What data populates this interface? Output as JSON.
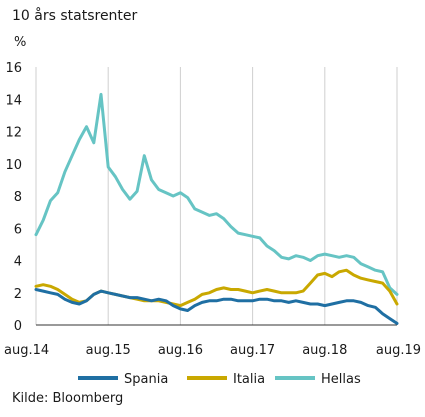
{
  "chart_data": {
    "type": "line",
    "title": "10 års statsrenter",
    "ylabel": "%",
    "xlabel": "",
    "source": "Kilde: Bloomberg",
    "ylim": [
      0,
      16
    ],
    "yticks": [
      0,
      2,
      4,
      6,
      8,
      10,
      12,
      14,
      16
    ],
    "xlim": [
      2014.6,
      2019.6
    ],
    "xticks": [
      {
        "value": 2014.6,
        "label": "aug.14"
      },
      {
        "value": 2015.6,
        "label": "aug.15"
      },
      {
        "value": 2016.6,
        "label": "aug.16"
      },
      {
        "value": 2017.6,
        "label": "aug.17"
      },
      {
        "value": 2018.6,
        "label": "aug.18"
      },
      {
        "value": 2019.6,
        "label": "aug.19"
      }
    ],
    "grid": "vertical",
    "legend": "bottom",
    "series": [
      {
        "name": "Spania",
        "color": "#1f6fa3",
        "x": [
          2014.6,
          2014.7,
          2014.8,
          2014.9,
          2015.0,
          2015.1,
          2015.2,
          2015.3,
          2015.4,
          2015.5,
          2015.6,
          2015.7,
          2015.8,
          2015.9,
          2016.0,
          2016.1,
          2016.2,
          2016.3,
          2016.4,
          2016.5,
          2016.6,
          2016.7,
          2016.8,
          2016.9,
          2017.0,
          2017.1,
          2017.2,
          2017.3,
          2017.4,
          2017.5,
          2017.6,
          2017.7,
          2017.8,
          2017.9,
          2018.0,
          2018.1,
          2018.2,
          2018.3,
          2018.4,
          2018.5,
          2018.6,
          2018.7,
          2018.8,
          2018.9,
          2019.0,
          2019.1,
          2019.2,
          2019.3,
          2019.4,
          2019.5,
          2019.6
        ],
        "values": [
          2.2,
          2.1,
          2.0,
          1.9,
          1.6,
          1.4,
          1.3,
          1.5,
          1.9,
          2.1,
          2.0,
          1.9,
          1.8,
          1.7,
          1.7,
          1.6,
          1.5,
          1.6,
          1.5,
          1.2,
          1.0,
          0.9,
          1.2,
          1.4,
          1.5,
          1.5,
          1.6,
          1.6,
          1.5,
          1.5,
          1.5,
          1.6,
          1.6,
          1.5,
          1.5,
          1.4,
          1.5,
          1.4,
          1.3,
          1.3,
          1.2,
          1.3,
          1.4,
          1.5,
          1.5,
          1.4,
          1.2,
          1.1,
          0.7,
          0.4,
          0.1
        ]
      },
      {
        "name": "Italia",
        "color": "#c9a800",
        "x": [
          2014.6,
          2014.7,
          2014.8,
          2014.9,
          2015.0,
          2015.1,
          2015.2,
          2015.3,
          2015.4,
          2015.5,
          2015.6,
          2015.7,
          2015.8,
          2015.9,
          2016.0,
          2016.1,
          2016.2,
          2016.3,
          2016.4,
          2016.5,
          2016.6,
          2016.7,
          2016.8,
          2016.9,
          2017.0,
          2017.1,
          2017.2,
          2017.3,
          2017.4,
          2017.5,
          2017.6,
          2017.7,
          2017.8,
          2017.9,
          2018.0,
          2018.1,
          2018.2,
          2018.3,
          2018.4,
          2018.5,
          2018.6,
          2018.7,
          2018.8,
          2018.9,
          2019.0,
          2019.1,
          2019.2,
          2019.3,
          2019.4,
          2019.5,
          2019.6
        ],
        "values": [
          2.4,
          2.5,
          2.4,
          2.2,
          1.9,
          1.6,
          1.4,
          1.5,
          1.9,
          2.1,
          2.0,
          1.9,
          1.8,
          1.7,
          1.6,
          1.5,
          1.5,
          1.5,
          1.4,
          1.3,
          1.2,
          1.4,
          1.6,
          1.9,
          2.0,
          2.2,
          2.3,
          2.2,
          2.2,
          2.1,
          2.0,
          2.1,
          2.2,
          2.1,
          2.0,
          2.0,
          2.0,
          2.1,
          2.6,
          3.1,
          3.2,
          3.0,
          3.3,
          3.4,
          3.1,
          2.9,
          2.8,
          2.7,
          2.6,
          2.1,
          1.3
        ]
      },
      {
        "name": "Hellas",
        "color": "#66c4c4",
        "x": [
          2014.6,
          2014.7,
          2014.8,
          2014.9,
          2015.0,
          2015.1,
          2015.2,
          2015.3,
          2015.4,
          2015.5,
          2015.6,
          2015.7,
          2015.8,
          2015.9,
          2016.0,
          2016.1,
          2016.2,
          2016.3,
          2016.4,
          2016.5,
          2016.6,
          2016.7,
          2016.8,
          2016.9,
          2017.0,
          2017.1,
          2017.2,
          2017.3,
          2017.4,
          2017.5,
          2017.6,
          2017.7,
          2017.8,
          2017.9,
          2018.0,
          2018.1,
          2018.2,
          2018.3,
          2018.4,
          2018.5,
          2018.6,
          2018.7,
          2018.8,
          2018.9,
          2019.0,
          2019.1,
          2019.2,
          2019.3,
          2019.4,
          2019.5,
          2019.6
        ],
        "values": [
          5.6,
          6.5,
          7.7,
          8.2,
          9.5,
          10.5,
          11.5,
          12.3,
          11.3,
          14.3,
          9.8,
          9.2,
          8.4,
          7.8,
          8.3,
          10.5,
          9.0,
          8.4,
          8.2,
          8.0,
          8.2,
          7.9,
          7.2,
          7.0,
          6.8,
          6.9,
          6.6,
          6.1,
          5.7,
          5.6,
          5.5,
          5.4,
          4.9,
          4.6,
          4.2,
          4.1,
          4.3,
          4.2,
          4.0,
          4.3,
          4.4,
          4.3,
          4.2,
          4.3,
          4.2,
          3.8,
          3.6,
          3.4,
          3.3,
          2.3,
          1.9
        ]
      }
    ]
  }
}
